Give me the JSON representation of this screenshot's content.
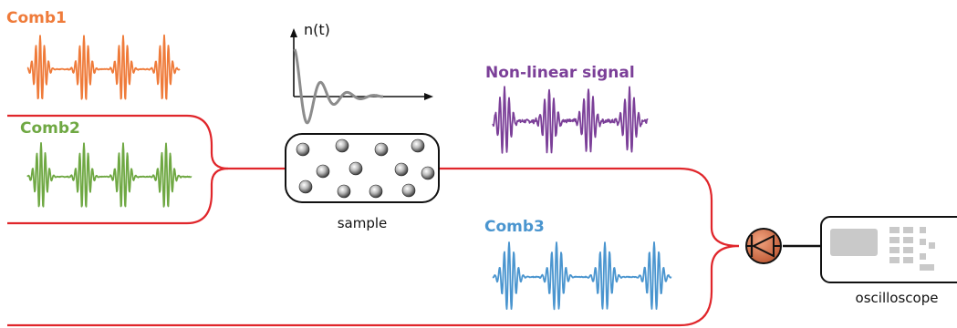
{
  "labels": {
    "comb1": "Comb1",
    "comb2": "Comb2",
    "comb3": "Comb3",
    "nonlinear": "Non-linear signal",
    "sample": "sample",
    "oscilloscope": "oscilloscope",
    "nt_axis": "n(t)"
  },
  "colors": {
    "comb1": "#ef7b3a",
    "comb2": "#6fa843",
    "comb3": "#4a95cf",
    "nonlinear": "#7b3f98",
    "fiber": "#e0262b",
    "decay": "#8c8c8c",
    "detector": "#c8613a"
  },
  "icons": {
    "detector": "photodiode-icon",
    "oscilloscope": "oscilloscope-icon",
    "particle": "sphere-icon"
  }
}
